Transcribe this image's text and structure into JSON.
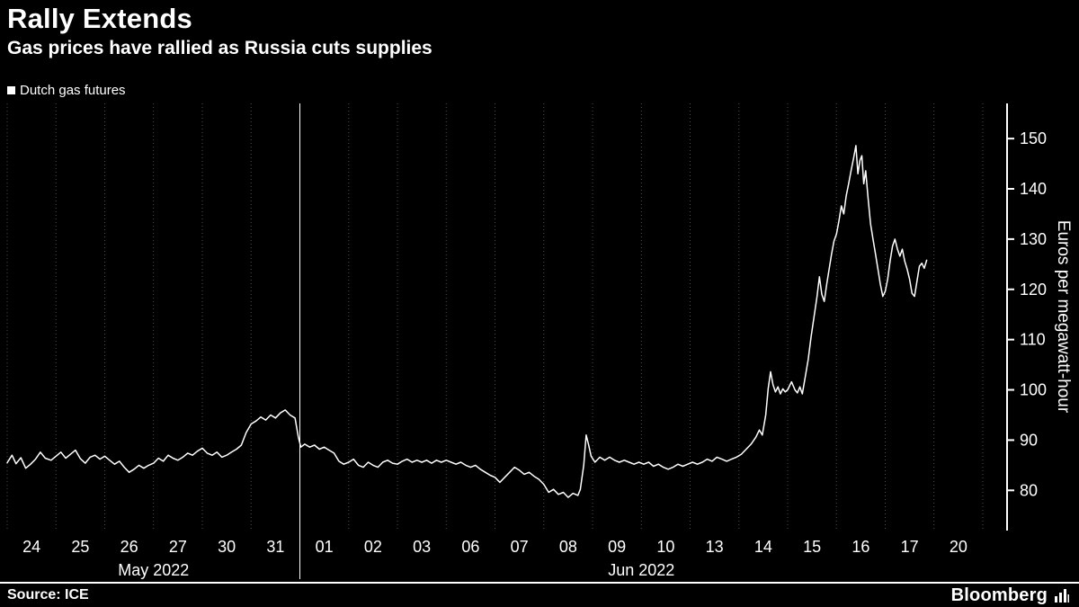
{
  "header": {
    "title": "Rally Extends",
    "subtitle": "Gas prices have rallied as Russia cuts supplies"
  },
  "legend": {
    "label": "Dutch gas futures"
  },
  "footer": {
    "source": "Source: ICE",
    "brand": "Bloomberg"
  },
  "colors": {
    "background": "#000000",
    "line": "#ffffff",
    "grid": "#4d4d4d",
    "text": "#ffffff"
  },
  "chart_data": {
    "type": "line",
    "title": "Rally Extends",
    "subtitle": "Gas prices have rallied as Russia cuts supplies",
    "legend": [
      "Dutch gas futures"
    ],
    "series_name": "Dutch gas futures",
    "xlabel": "",
    "ylabel": "Euros per megawatt-hour",
    "yticks": [
      80,
      90,
      100,
      110,
      120,
      130,
      140,
      150
    ],
    "ylim": [
      72,
      157
    ],
    "grid": "vertical-dashed",
    "legend_position": "top-left",
    "y_axis_side": "right",
    "x_day_labels": [
      "24",
      "25",
      "26",
      "27",
      "30",
      "31",
      "01",
      "02",
      "03",
      "06",
      "07",
      "08",
      "09",
      "10",
      "13",
      "14",
      "15",
      "16",
      "17",
      "20"
    ],
    "month_groups": [
      {
        "label": "May 2022",
        "start": 0,
        "count": 6
      },
      {
        "label": "Jun 2022",
        "start": 6,
        "count": 14
      }
    ],
    "points": [
      [
        0.0,
        85.5
      ],
      [
        0.1,
        87.0
      ],
      [
        0.18,
        85.3
      ],
      [
        0.28,
        86.5
      ],
      [
        0.38,
        84.4
      ],
      [
        0.48,
        85.2
      ],
      [
        0.58,
        86.2
      ],
      [
        0.68,
        87.6
      ],
      [
        0.78,
        86.4
      ],
      [
        0.9,
        86.0
      ],
      [
        1.0,
        86.8
      ],
      [
        1.1,
        87.6
      ],
      [
        1.2,
        86.4
      ],
      [
        1.3,
        87.2
      ],
      [
        1.4,
        88.0
      ],
      [
        1.5,
        86.3
      ],
      [
        1.6,
        85.4
      ],
      [
        1.7,
        86.6
      ],
      [
        1.8,
        87.0
      ],
      [
        1.9,
        86.2
      ],
      [
        2.0,
        86.8
      ],
      [
        2.1,
        86.0
      ],
      [
        2.2,
        85.2
      ],
      [
        2.3,
        85.8
      ],
      [
        2.4,
        84.6
      ],
      [
        2.5,
        83.6
      ],
      [
        2.6,
        84.2
      ],
      [
        2.7,
        85.0
      ],
      [
        2.8,
        84.4
      ],
      [
        2.9,
        85.0
      ],
      [
        3.0,
        85.4
      ],
      [
        3.1,
        86.4
      ],
      [
        3.2,
        85.8
      ],
      [
        3.3,
        87.0
      ],
      [
        3.4,
        86.4
      ],
      [
        3.5,
        86.0
      ],
      [
        3.6,
        86.6
      ],
      [
        3.7,
        87.4
      ],
      [
        3.8,
        87.0
      ],
      [
        3.9,
        87.8
      ],
      [
        4.0,
        88.4
      ],
      [
        4.1,
        87.4
      ],
      [
        4.2,
        87.0
      ],
      [
        4.3,
        87.6
      ],
      [
        4.4,
        86.6
      ],
      [
        4.5,
        87.0
      ],
      [
        4.6,
        87.6
      ],
      [
        4.7,
        88.2
      ],
      [
        4.8,
        89.0
      ],
      [
        4.9,
        91.5
      ],
      [
        5.0,
        93.2
      ],
      [
        5.1,
        93.8
      ],
      [
        5.2,
        94.6
      ],
      [
        5.3,
        94.0
      ],
      [
        5.4,
        95.0
      ],
      [
        5.5,
        94.4
      ],
      [
        5.6,
        95.4
      ],
      [
        5.7,
        96.0
      ],
      [
        5.8,
        95.0
      ],
      [
        5.9,
        94.4
      ],
      [
        5.97,
        90.5
      ],
      [
        6.02,
        88.6
      ],
      [
        6.1,
        89.2
      ],
      [
        6.2,
        88.6
      ],
      [
        6.3,
        89.0
      ],
      [
        6.4,
        88.2
      ],
      [
        6.5,
        88.6
      ],
      [
        6.6,
        88.0
      ],
      [
        6.7,
        87.4
      ],
      [
        6.8,
        85.8
      ],
      [
        6.9,
        85.2
      ],
      [
        7.0,
        85.6
      ],
      [
        7.1,
        86.2
      ],
      [
        7.2,
        85.0
      ],
      [
        7.3,
        84.6
      ],
      [
        7.4,
        85.6
      ],
      [
        7.5,
        85.0
      ],
      [
        7.6,
        84.6
      ],
      [
        7.7,
        85.6
      ],
      [
        7.8,
        86.0
      ],
      [
        7.9,
        85.4
      ],
      [
        8.0,
        85.2
      ],
      [
        8.1,
        85.8
      ],
      [
        8.2,
        86.2
      ],
      [
        8.3,
        85.6
      ],
      [
        8.4,
        86.0
      ],
      [
        8.5,
        85.6
      ],
      [
        8.6,
        86.0
      ],
      [
        8.7,
        85.4
      ],
      [
        8.8,
        86.0
      ],
      [
        8.9,
        85.6
      ],
      [
        9.0,
        86.0
      ],
      [
        9.1,
        85.6
      ],
      [
        9.2,
        85.2
      ],
      [
        9.3,
        85.6
      ],
      [
        9.4,
        85.0
      ],
      [
        9.5,
        84.6
      ],
      [
        9.6,
        85.0
      ],
      [
        9.7,
        84.2
      ],
      [
        9.8,
        83.6
      ],
      [
        9.9,
        83.0
      ],
      [
        10.0,
        82.6
      ],
      [
        10.1,
        81.6
      ],
      [
        10.2,
        82.6
      ],
      [
        10.3,
        83.6
      ],
      [
        10.4,
        84.6
      ],
      [
        10.5,
        84.0
      ],
      [
        10.6,
        83.2
      ],
      [
        10.7,
        83.6
      ],
      [
        10.8,
        82.8
      ],
      [
        10.9,
        82.2
      ],
      [
        11.0,
        81.2
      ],
      [
        11.1,
        79.6
      ],
      [
        11.2,
        80.2
      ],
      [
        11.3,
        79.2
      ],
      [
        11.4,
        79.6
      ],
      [
        11.5,
        78.6
      ],
      [
        11.6,
        79.4
      ],
      [
        11.7,
        79.0
      ],
      [
        11.75,
        80.2
      ],
      [
        11.82,
        85.0
      ],
      [
        11.87,
        91.0
      ],
      [
        11.92,
        89.0
      ],
      [
        11.97,
        86.8
      ],
      [
        12.05,
        85.6
      ],
      [
        12.15,
        86.6
      ],
      [
        12.25,
        86.0
      ],
      [
        12.35,
        86.6
      ],
      [
        12.45,
        86.0
      ],
      [
        12.55,
        85.6
      ],
      [
        12.65,
        86.0
      ],
      [
        12.75,
        85.6
      ],
      [
        12.85,
        85.2
      ],
      [
        12.95,
        85.6
      ],
      [
        13.05,
        85.2
      ],
      [
        13.15,
        85.6
      ],
      [
        13.25,
        84.8
      ],
      [
        13.35,
        85.2
      ],
      [
        13.45,
        84.6
      ],
      [
        13.55,
        84.2
      ],
      [
        13.65,
        84.6
      ],
      [
        13.75,
        85.2
      ],
      [
        13.85,
        84.8
      ],
      [
        13.95,
        85.2
      ],
      [
        14.05,
        85.6
      ],
      [
        14.15,
        85.2
      ],
      [
        14.25,
        85.6
      ],
      [
        14.35,
        86.2
      ],
      [
        14.45,
        85.8
      ],
      [
        14.55,
        86.6
      ],
      [
        14.65,
        86.2
      ],
      [
        14.75,
        85.8
      ],
      [
        14.85,
        86.2
      ],
      [
        14.95,
        86.6
      ],
      [
        15.05,
        87.2
      ],
      [
        15.15,
        88.2
      ],
      [
        15.25,
        89.2
      ],
      [
        15.35,
        90.6
      ],
      [
        15.42,
        92.0
      ],
      [
        15.48,
        91.0
      ],
      [
        15.55,
        95.0
      ],
      [
        15.6,
        100.2
      ],
      [
        15.65,
        103.6
      ],
      [
        15.7,
        101.0
      ],
      [
        15.75,
        99.6
      ],
      [
        15.8,
        100.6
      ],
      [
        15.85,
        99.2
      ],
      [
        15.9,
        100.2
      ],
      [
        15.95,
        99.6
      ],
      [
        16.0,
        100.0
      ],
      [
        16.08,
        101.6
      ],
      [
        16.15,
        100.0
      ],
      [
        16.2,
        99.4
      ],
      [
        16.25,
        100.6
      ],
      [
        16.3,
        99.2
      ],
      [
        16.35,
        102.0
      ],
      [
        16.42,
        106.0
      ],
      [
        16.48,
        110.5
      ],
      [
        16.54,
        114.5
      ],
      [
        16.6,
        118.5
      ],
      [
        16.65,
        122.5
      ],
      [
        16.7,
        119.0
      ],
      [
        16.75,
        117.6
      ],
      [
        16.8,
        121.0
      ],
      [
        16.85,
        124.0
      ],
      [
        16.9,
        127.0
      ],
      [
        16.95,
        129.6
      ],
      [
        17.0,
        131.0
      ],
      [
        17.05,
        133.6
      ],
      [
        17.1,
        136.6
      ],
      [
        17.15,
        135.0
      ],
      [
        17.2,
        138.6
      ],
      [
        17.25,
        141.0
      ],
      [
        17.3,
        143.6
      ],
      [
        17.35,
        146.0
      ],
      [
        17.4,
        148.6
      ],
      [
        17.44,
        143.0
      ],
      [
        17.48,
        145.6
      ],
      [
        17.52,
        146.6
      ],
      [
        17.56,
        141.0
      ],
      [
        17.6,
        143.6
      ],
      [
        17.65,
        138.0
      ],
      [
        17.7,
        133.0
      ],
      [
        17.75,
        130.0
      ],
      [
        17.8,
        127.0
      ],
      [
        17.85,
        124.0
      ],
      [
        17.9,
        121.0
      ],
      [
        17.95,
        118.6
      ],
      [
        18.0,
        119.6
      ],
      [
        18.05,
        122.0
      ],
      [
        18.1,
        125.6
      ],
      [
        18.15,
        128.6
      ],
      [
        18.2,
        130.0
      ],
      [
        18.25,
        128.0
      ],
      [
        18.3,
        126.6
      ],
      [
        18.35,
        128.0
      ],
      [
        18.4,
        125.6
      ],
      [
        18.45,
        124.0
      ],
      [
        18.5,
        122.0
      ],
      [
        18.55,
        119.2
      ],
      [
        18.6,
        118.6
      ],
      [
        18.65,
        121.6
      ],
      [
        18.7,
        124.6
      ],
      [
        18.75,
        125.2
      ],
      [
        18.8,
        124.2
      ],
      [
        18.85,
        125.8
      ]
    ]
  }
}
